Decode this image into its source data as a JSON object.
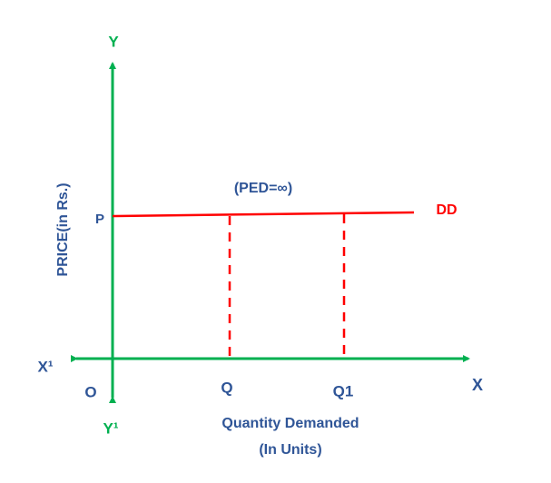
{
  "diagram": {
    "y_axis_top": "Y",
    "y_axis_bottom": "Y¹",
    "x_axis_right": "X",
    "x_axis_left": "X¹",
    "origin": "O",
    "price_point": "P",
    "curve_label": "DD",
    "elasticity_note": "(PED=∞)",
    "quantity_1": "Q",
    "quantity_2": "Q1",
    "y_axis_title": "PRICE(in Rs.)",
    "x_axis_title": [
      "Quantity Demanded",
      "(In Units)"
    ]
  }
}
